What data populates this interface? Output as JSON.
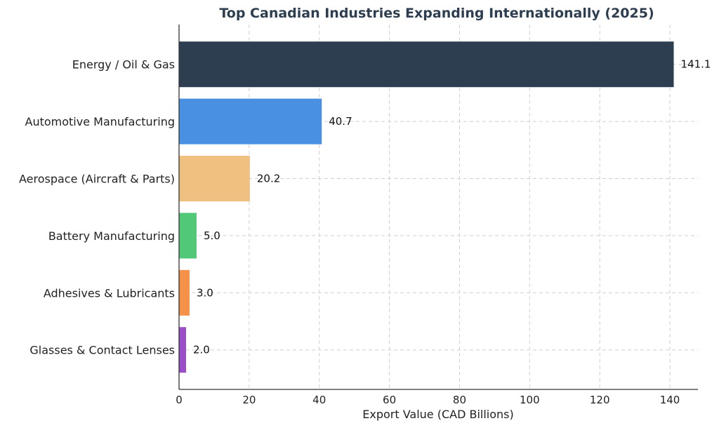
{
  "chart_data": {
    "type": "bar",
    "orientation": "horizontal",
    "title": "Top Canadian Industries Expanding Internationally (2025)",
    "xlabel": "Export Value (CAD Billions)",
    "ylabel": "",
    "xlim": [
      0,
      148
    ],
    "xticks": [
      0,
      20,
      40,
      60,
      80,
      100,
      120,
      140
    ],
    "grid": true,
    "categories": [
      "Energy / Oil & Gas",
      "Automotive Manufacturing",
      "Aerospace (Aircraft & Parts)",
      "Battery Manufacturing",
      "Adhesives & Lubricants",
      "Glasses & Contact Lenses"
    ],
    "values": [
      141.1,
      40.7,
      20.2,
      5.0,
      3.0,
      2.0
    ],
    "value_labels": [
      "141.1",
      "40.7",
      "20.2",
      "5.0",
      "3.0",
      "2.0"
    ],
    "colors": [
      "#2c3e50",
      "#4a90e2",
      "#f0c080",
      "#50c878",
      "#f5924a",
      "#9b4dca"
    ]
  }
}
